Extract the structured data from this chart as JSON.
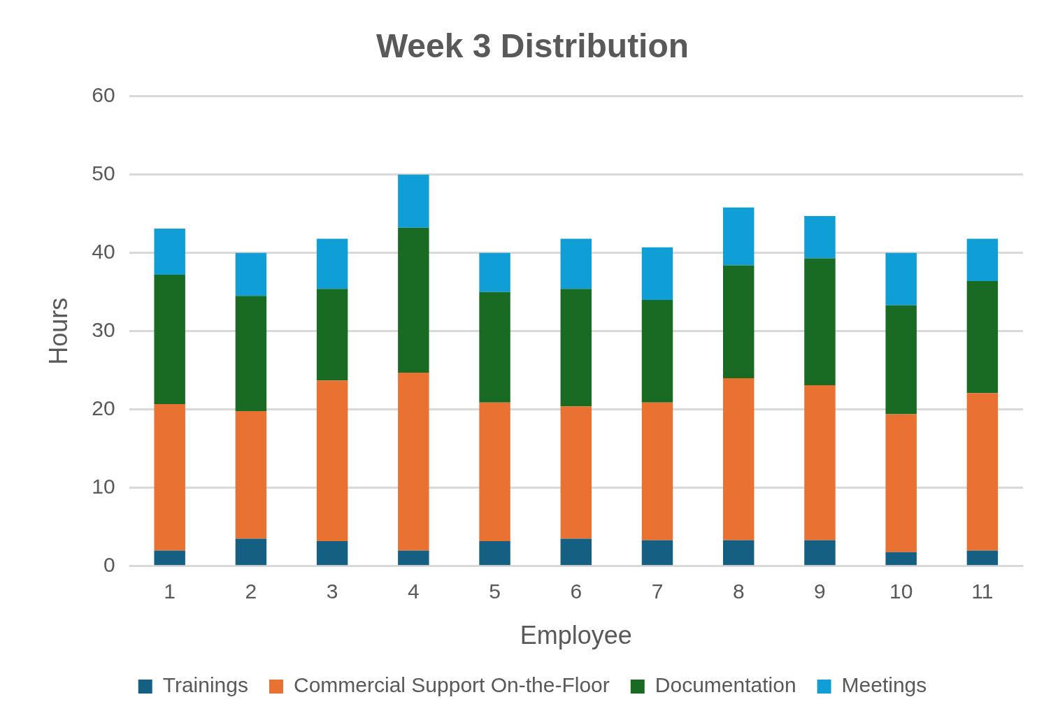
{
  "chart_data": {
    "type": "bar",
    "title": "Week 3 Distribution",
    "xlabel": "Employee",
    "ylabel": "Hours",
    "categories": [
      "1",
      "2",
      "3",
      "4",
      "5",
      "6",
      "7",
      "8",
      "9",
      "10",
      "11"
    ],
    "stacked": true,
    "series": [
      {
        "name": "Trainings",
        "color": "#156082",
        "values": [
          2,
          3.5,
          3.2,
          2,
          3.2,
          3.5,
          3.3,
          3.3,
          3.3,
          1.8,
          2
        ]
      },
      {
        "name": "Commercial Support On-the-Floor",
        "color": "#e97132",
        "values": [
          18.7,
          16.3,
          20.5,
          22.7,
          17.7,
          16.9,
          17.6,
          20.7,
          19.8,
          17.6,
          20.1
        ]
      },
      {
        "name": "Documentation",
        "color": "#196b24",
        "values": [
          16.5,
          14.7,
          11.7,
          18.5,
          14.1,
          15,
          13.1,
          14.4,
          16.2,
          13.9,
          14.3
        ]
      },
      {
        "name": "Meetings",
        "color": "#0f9ed5",
        "values": [
          5.9,
          5.5,
          6.4,
          6.8,
          5,
          6.4,
          6.7,
          7.4,
          5.4,
          6.7,
          5.4
        ]
      }
    ],
    "ylim": [
      0,
      60
    ],
    "yticks": [
      0,
      10,
      20,
      30,
      40,
      50,
      60
    ],
    "grid": "y",
    "legend": "bottom"
  }
}
